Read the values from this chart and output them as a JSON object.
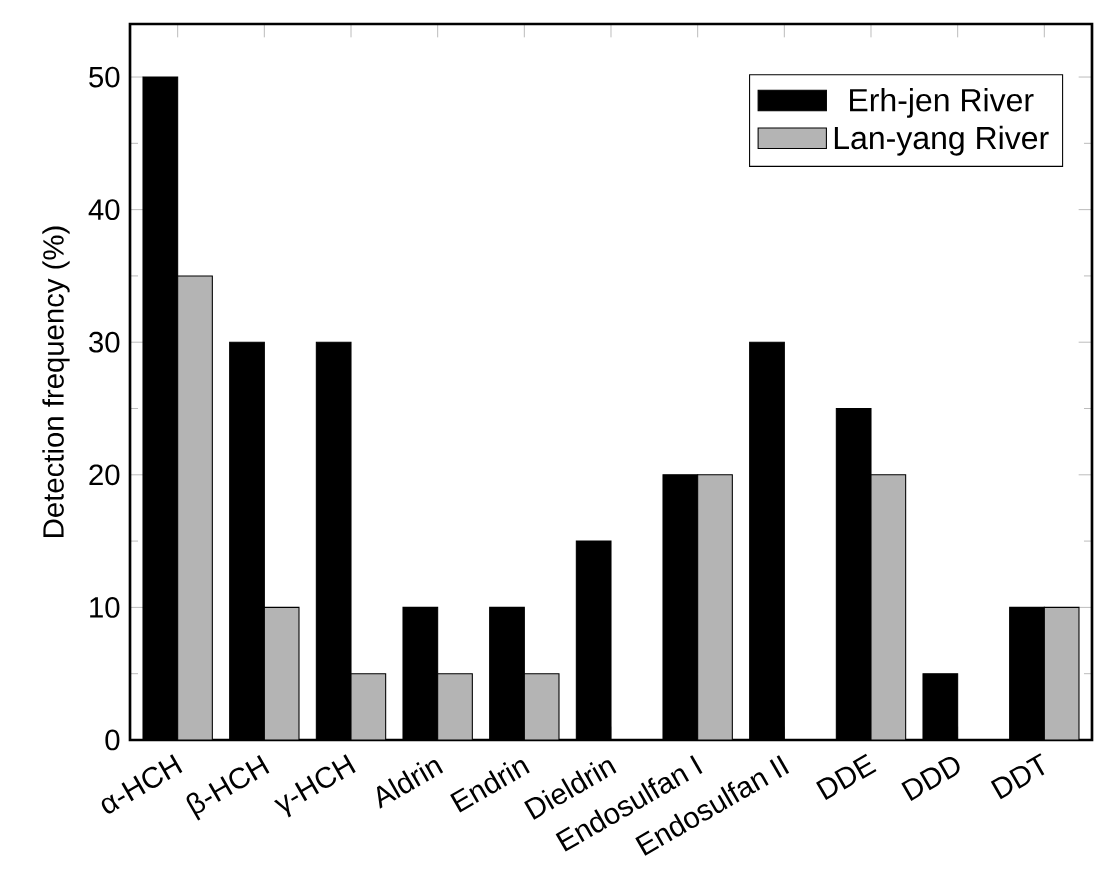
{
  "chart_data": {
    "type": "bar",
    "ylabel": "Detection frequency (%)",
    "categories": [
      "α-HCH",
      "β-HCH",
      "γ-HCH",
      "Aldrin",
      "Endrin",
      "Dieldrin",
      "Endosulfan I",
      "Endosulfan II",
      "DDE",
      "DDD",
      "DDT"
    ],
    "series": [
      {
        "name": "Erh-jen River",
        "color": "#000000",
        "values": [
          50,
          30,
          30,
          10,
          10,
          15,
          20,
          30,
          25,
          5,
          10
        ]
      },
      {
        "name": "Lan-yang River",
        "color": "#b4b4b4",
        "values": [
          35,
          10,
          5,
          5,
          5,
          null,
          20,
          null,
          20,
          null,
          10
        ]
      }
    ],
    "ylim": [
      0,
      54
    ],
    "yticks": [
      0,
      10,
      20,
      30,
      40,
      50
    ],
    "grid": false,
    "legend": "top right"
  }
}
